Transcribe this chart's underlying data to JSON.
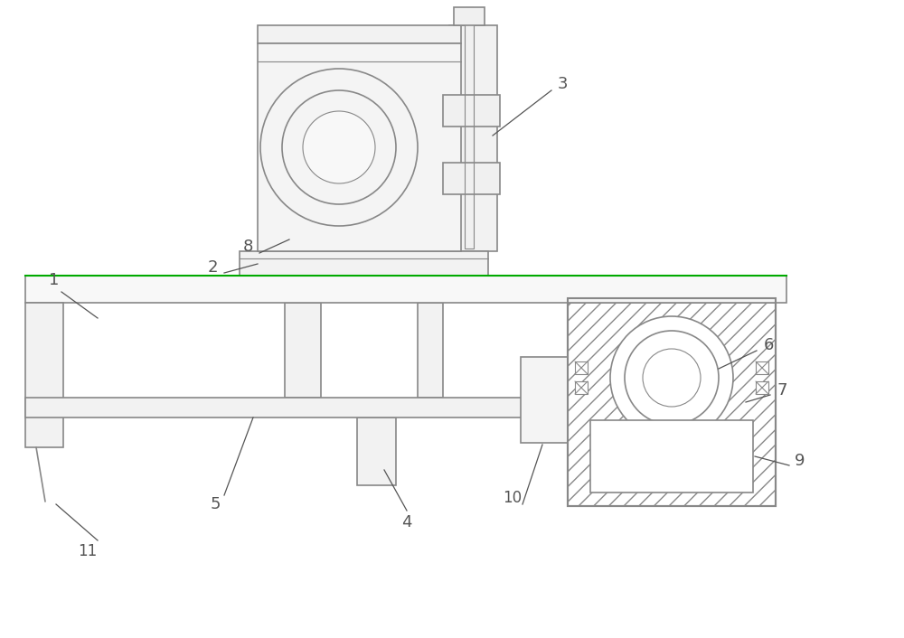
{
  "bg_color": "#ffffff",
  "line_color": "#888888",
  "green_color": "#00aa00",
  "label_color": "#555555",
  "lw": 1.2,
  "tlw": 0.8,
  "thklw": 1.5
}
